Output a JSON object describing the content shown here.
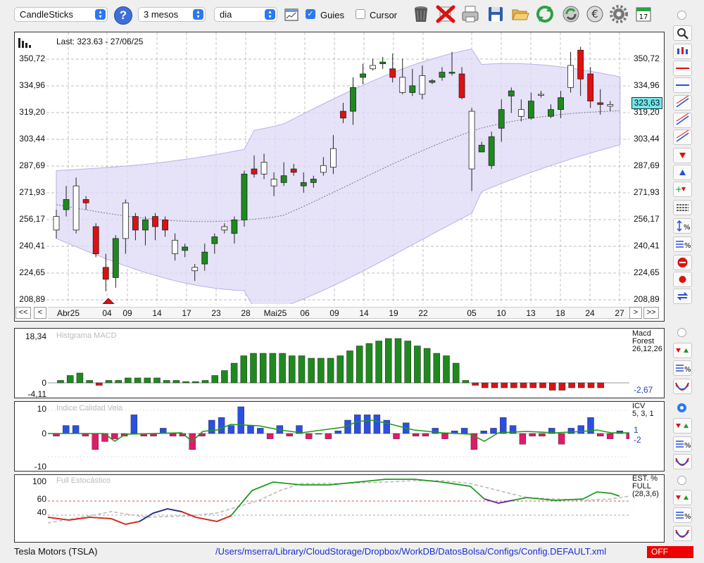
{
  "toolbar": {
    "chart_type": "CandleSticks",
    "period": "3 mesos",
    "interval": "dia",
    "guides_label": "Guies",
    "guides_checked": true,
    "cursor_label": "Cursor",
    "cursor_checked": false,
    "help_icon": "question-icon",
    "calendar_day": "17"
  },
  "main_chart": {
    "last_label": "Last: 323.63 - 27/06/25",
    "current_price": "323,63",
    "y_ticks": [
      "350,72",
      "334,96",
      "319,20",
      "303,44",
      "287,69",
      "271,93",
      "256,17",
      "240,41",
      "224,65",
      "208,89"
    ],
    "x_ticks": [
      "Abr25",
      "04",
      "09",
      "14",
      "17",
      "23",
      "28",
      "Mai25",
      "06",
      "09",
      "14",
      "19",
      "22",
      "05",
      "10",
      "13",
      "18",
      "24",
      "27"
    ],
    "nav": {
      "first": "<<",
      "prev": "<",
      "next": ">",
      "last": ">>"
    },
    "colors": {
      "up": "#1e8a1e",
      "down": "#e01010",
      "band": "#ddd9f7"
    }
  },
  "macd": {
    "title": "Histgrama MACD",
    "y_ticks": [
      "18,34",
      "0",
      "-4,11"
    ],
    "side_lines": [
      "Macd",
      "Forest",
      "26,12,26"
    ],
    "current": "-2,67"
  },
  "icv": {
    "title": "Indice Calidad Vela",
    "y_ticks": [
      "10",
      "0",
      "-10"
    ],
    "side_lines": [
      "ICV",
      "5, 3, 1"
    ],
    "value1": "1",
    "value2": "-2"
  },
  "stoch": {
    "title": "Full Estocástico",
    "y_ticks": [
      "100",
      "60",
      "40"
    ],
    "side_lines": [
      "EST. %",
      "FULL",
      "(28,3,6)"
    ]
  },
  "status": {
    "symbol": "Tesla Motors (TSLA)",
    "path": "/Users/mserra/Library/CloudStorage/Dropbox/WorkDB/DatosBolsa/Configs/Config.DEFAULT.xml",
    "state": "OFF"
  }
}
